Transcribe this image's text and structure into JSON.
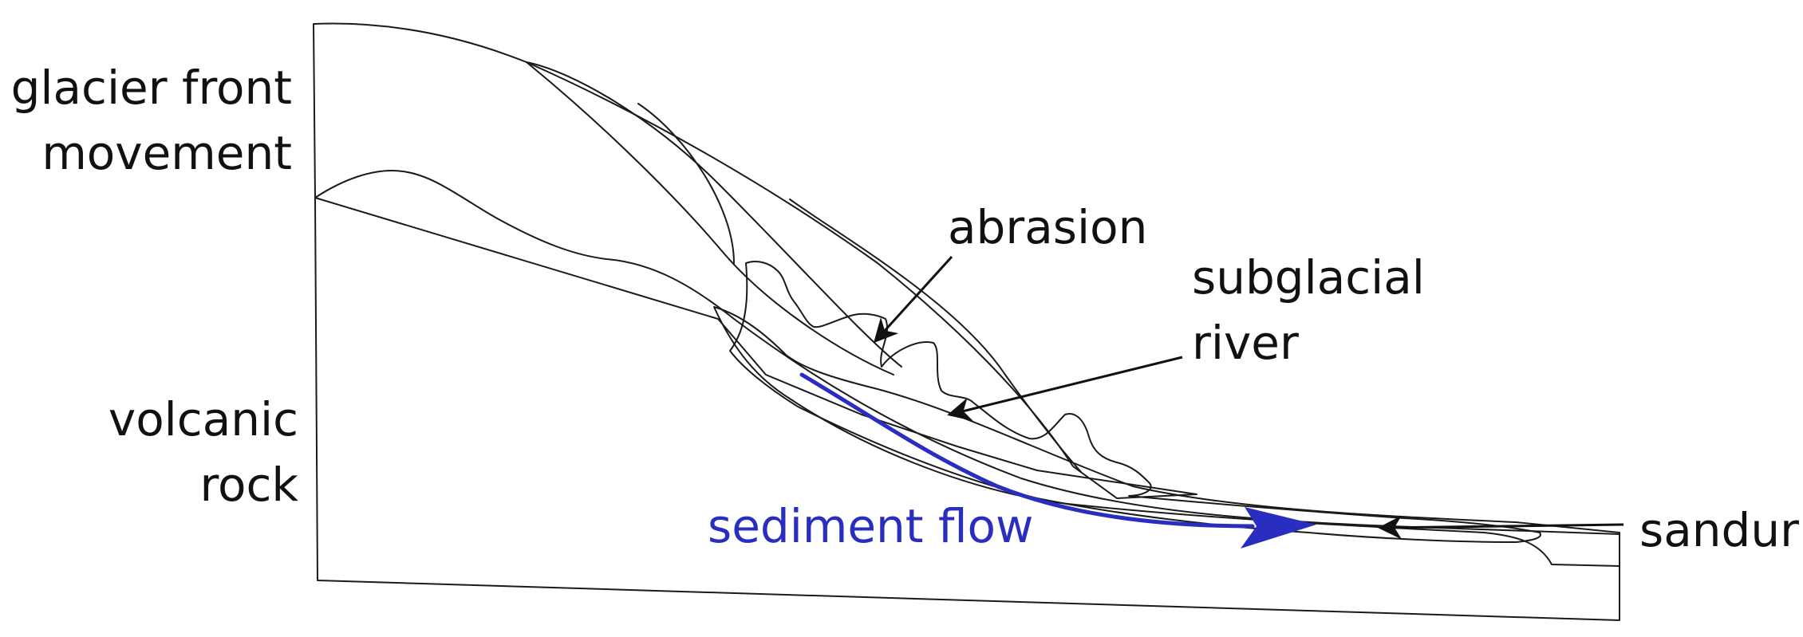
{
  "labels": {
    "glacier_front_line1": "glacier front",
    "glacier_front_line2": "movement",
    "volcanic_rock_line1": "volcanic",
    "volcanic_rock_line2": "rock",
    "abrasion": "abrasion",
    "subglacial_river_line1": "subglacial",
    "subglacial_river_line2": "river",
    "sediment_flow": "sediment flow",
    "sandur": "sandur"
  },
  "colors": {
    "volcanic_rock": "#96696a",
    "sediment": "#8f8f8f",
    "meltwater": "#a7aeea",
    "sediment_flow": "#2a2ec0",
    "ink": "#111111"
  }
}
